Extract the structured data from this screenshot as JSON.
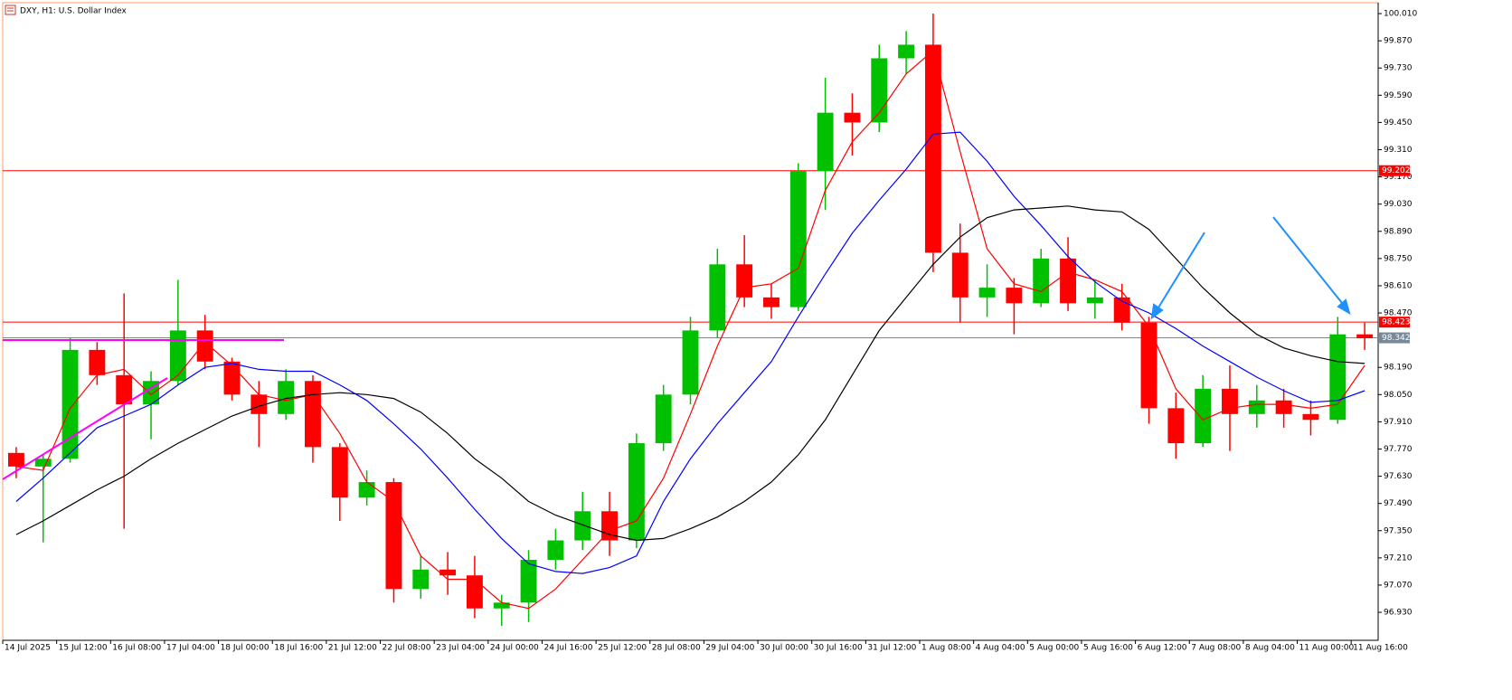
{
  "chart_data": {
    "type": "candlestick",
    "title": "DXY, H1:  U.S. Dollar Index",
    "up_color": "#00c000",
    "down_color": "#ff0000",
    "categories": [
      "14 Jul 2025",
      null,
      "15 Jul 12:00",
      null,
      "16 Jul 08:00",
      null,
      "17 Jul 04:00",
      null,
      "18 Jul 00:00",
      null,
      "18 Jul 16:00",
      null,
      "21 Jul 12:00",
      null,
      "22 Jul 08:00",
      null,
      "23 Jul 04:00",
      null,
      "24 Jul 00:00",
      null,
      "24 Jul 16:00",
      null,
      "25 Jul 12:00",
      null,
      "28 Jul 08:00",
      null,
      "29 Jul 04:00",
      null,
      "30 Jul 00:00",
      null,
      "30 Jul 16:00",
      null,
      "31 Jul 12:00",
      null,
      "1 Aug 08:00",
      null,
      "4 Aug 04:00",
      null,
      "5 Aug 00:00",
      null,
      "5 Aug 16:00",
      null,
      "6 Aug 12:00",
      null,
      "7 Aug 08:00",
      null,
      "8 Aug 04:00",
      null,
      "11 Aug 00:00",
      null,
      "11 Aug 16:00"
    ],
    "open": [
      97.75,
      97.68,
      97.72,
      98.28,
      98.15,
      98.0,
      98.12,
      98.38,
      98.22,
      98.05,
      97.95,
      98.12,
      97.78,
      97.52,
      97.6,
      97.05,
      97.15,
      97.12,
      96.95,
      96.98,
      97.2,
      97.3,
      97.45,
      97.3,
      97.8,
      98.05,
      98.38,
      98.72,
      98.55,
      98.5,
      99.2,
      99.5,
      99.45,
      99.78,
      99.85,
      98.78,
      98.55,
      98.6,
      98.52,
      98.75,
      98.52,
      98.55,
      98.42,
      97.98,
      97.8,
      98.08,
      97.95,
      98.02,
      97.95,
      97.92,
      98.36
    ],
    "high": [
      97.78,
      97.74,
      98.34,
      98.32,
      98.57,
      98.17,
      98.64,
      98.46,
      98.24,
      98.12,
      98.18,
      98.15,
      97.8,
      97.66,
      97.62,
      97.22,
      97.24,
      97.22,
      97.02,
      97.25,
      97.36,
      97.55,
      97.55,
      97.85,
      98.1,
      98.45,
      98.8,
      98.87,
      98.62,
      99.24,
      99.68,
      99.6,
      99.85,
      99.92,
      100.01,
      98.93,
      98.72,
      98.65,
      98.8,
      98.86,
      98.64,
      98.62,
      98.45,
      98.06,
      98.15,
      98.2,
      98.1,
      98.08,
      98.02,
      98.45,
      98.42
    ],
    "low": [
      97.62,
      97.29,
      97.7,
      98.1,
      97.36,
      97.82,
      98.1,
      98.18,
      98.02,
      97.78,
      97.92,
      97.7,
      97.4,
      97.48,
      96.98,
      97.0,
      97.02,
      96.9,
      96.86,
      96.88,
      97.15,
      97.25,
      97.22,
      97.26,
      97.76,
      98.0,
      98.34,
      98.5,
      98.44,
      98.48,
      99.0,
      99.28,
      99.4,
      99.7,
      98.68,
      98.42,
      98.45,
      98.36,
      98.5,
      98.48,
      98.44,
      98.38,
      97.9,
      97.72,
      97.78,
      97.76,
      97.88,
      97.88,
      97.84,
      97.9,
      98.28
    ],
    "close": [
      97.68,
      97.72,
      98.28,
      98.15,
      98.0,
      98.12,
      98.38,
      98.22,
      98.05,
      97.95,
      98.12,
      97.78,
      97.52,
      97.6,
      97.05,
      97.15,
      97.12,
      96.95,
      96.98,
      97.2,
      97.3,
      97.45,
      97.3,
      97.8,
      98.05,
      98.38,
      98.72,
      98.55,
      98.5,
      99.2,
      99.5,
      99.45,
      99.78,
      99.85,
      98.78,
      98.55,
      98.6,
      98.52,
      98.75,
      98.52,
      98.55,
      98.42,
      97.98,
      97.8,
      98.08,
      97.95,
      98.02,
      97.95,
      97.92,
      98.36,
      98.34
    ],
    "moving_averages": [
      {
        "color": "#ff0000",
        "values": [
          97.68,
          97.66,
          97.98,
          98.15,
          98.18,
          98.05,
          98.15,
          98.32,
          98.2,
          98.05,
          98.02,
          98.05,
          97.85,
          97.6,
          97.5,
          97.22,
          97.1,
          97.1,
          96.98,
          96.95,
          97.05,
          97.2,
          97.35,
          97.4,
          97.62,
          97.95,
          98.3,
          98.6,
          98.62,
          98.7,
          99.1,
          99.35,
          99.5,
          99.7,
          99.82,
          99.3,
          98.8,
          98.62,
          98.58,
          98.68,
          98.64,
          98.58,
          98.4,
          98.08,
          97.92,
          97.98,
          98.0,
          98.0,
          97.98,
          98.0,
          98.2
        ]
      },
      {
        "color": "#0000ff",
        "values": [
          97.5,
          97.62,
          97.75,
          97.88,
          97.94,
          98.0,
          98.1,
          98.19,
          98.21,
          98.18,
          98.17,
          98.17,
          98.1,
          98.02,
          97.9,
          97.77,
          97.62,
          97.46,
          97.31,
          97.18,
          97.14,
          97.13,
          97.16,
          97.22,
          97.5,
          97.72,
          97.9,
          98.06,
          98.22,
          98.45,
          98.67,
          98.88,
          99.05,
          99.21,
          99.39,
          99.4,
          99.25,
          99.07,
          98.92,
          98.76,
          98.63,
          98.53,
          98.47,
          98.39,
          98.3,
          98.22,
          98.14,
          98.07,
          98.01,
          98.02,
          98.07
        ]
      },
      {
        "color": "#000000",
        "values": [
          97.33,
          97.4,
          97.48,
          97.56,
          97.63,
          97.72,
          97.8,
          97.87,
          97.94,
          97.99,
          98.03,
          98.05,
          98.06,
          98.05,
          98.03,
          97.96,
          97.85,
          97.72,
          97.62,
          97.5,
          97.43,
          97.38,
          97.33,
          97.3,
          97.31,
          97.36,
          97.42,
          97.5,
          97.6,
          97.74,
          97.92,
          98.15,
          98.38,
          98.55,
          98.72,
          98.86,
          98.96,
          99.0,
          99.01,
          99.02,
          99.0,
          98.99,
          98.9,
          98.75,
          98.6,
          98.47,
          98.36,
          98.29,
          98.25,
          98.22,
          98.21
        ]
      }
    ],
    "levels": [
      {
        "value": 99.202,
        "color": "#ff0000"
      },
      {
        "value": 98.423,
        "color": "#ff0000"
      },
      {
        "value": 98.342,
        "color": "#778899"
      }
    ],
    "ylim": [
      96.786,
      100.066
    ],
    "yticks": [
      {
        "value": 100.01,
        "label": "100.010"
      },
      {
        "value": 99.87,
        "label": "99.870"
      },
      {
        "value": 99.73,
        "label": "99.730"
      },
      {
        "value": 99.59,
        "label": "99.590"
      },
      {
        "value": 99.45,
        "label": "99.450"
      },
      {
        "value": 99.31,
        "label": "99.310"
      },
      {
        "value": 99.17,
        "label": "99.170"
      },
      {
        "value": 99.03,
        "label": "99.030"
      },
      {
        "value": 98.89,
        "label": "98.890"
      },
      {
        "value": 98.75,
        "label": "98.750"
      },
      {
        "value": 98.61,
        "label": "98.610"
      },
      {
        "value": 98.47,
        "label": "98.470"
      },
      {
        "value": 98.19,
        "label": "98.190"
      },
      {
        "value": 98.05,
        "label": "98.050"
      },
      {
        "value": 97.91,
        "label": "97.910"
      },
      {
        "value": 97.77,
        "label": "97.770"
      },
      {
        "value": 97.63,
        "label": "97.630"
      },
      {
        "value": 97.49,
        "label": "97.490"
      },
      {
        "value": 97.35,
        "label": "97.350"
      },
      {
        "value": 97.21,
        "label": "97.210"
      },
      {
        "value": 97.07,
        "label": "97.070"
      },
      {
        "value": 96.93,
        "label": "96.930"
      }
    ]
  }
}
